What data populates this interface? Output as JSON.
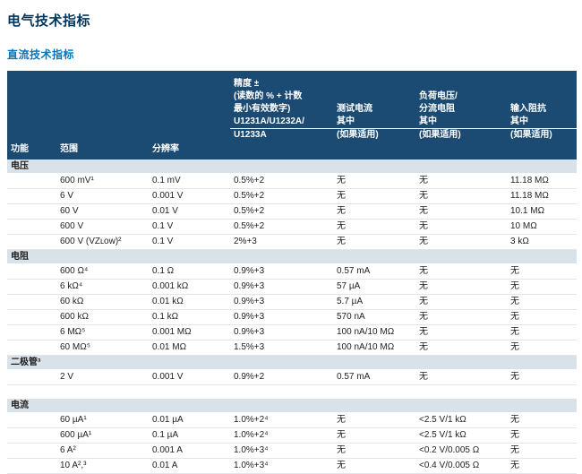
{
  "page": {
    "title": "电气技术指标",
    "subtitle": "直流技术指标"
  },
  "colors": {
    "title_text": "#00365e",
    "subtitle_text": "#0076c0",
    "header_bg": "#1b4a72",
    "header_text": "#ffffff",
    "section_band_bg": "#d9e1e9",
    "body_text": "#222222"
  },
  "table": {
    "headers": {
      "function": "功能",
      "range": "范围",
      "resolution": "分辨率",
      "accuracy_lines": [
        "精度 ±",
        "(读数的 % + 计数",
        "最小有效数字)",
        "U1231A/U1232A/",
        "U1233A"
      ],
      "test_current_lines": [
        "测试电流",
        "其中",
        "(如果适用)"
      ],
      "burden_lines": [
        "负荷电压/",
        "分流电阻",
        "其中",
        "(如果适用)"
      ],
      "impedance_lines": [
        "输入阻抗",
        "其中",
        "(如果适用)"
      ]
    },
    "none_label": "无",
    "sections": [
      {
        "name": "电压",
        "rows": [
          [
            "600 mV¹",
            "0.1 mV",
            "0.5%+2",
            "无",
            "无",
            "11.18 MΩ"
          ],
          [
            "6 V",
            "0.001 V",
            "0.5%+2",
            "无",
            "无",
            "11.18 MΩ"
          ],
          [
            "60 V",
            "0.01 V",
            "0.5%+2",
            "无",
            "无",
            "10.1 MΩ"
          ],
          [
            "600 V",
            "0.1 V",
            "0.5%+2",
            "无",
            "无",
            "10 MΩ"
          ],
          [
            "600 V (VZʟᴏᴡ)²",
            "0.1 V",
            "2%+3",
            "无",
            "无",
            "3 kΩ"
          ]
        ]
      },
      {
        "name": "电阻",
        "rows": [
          [
            "600 Ω⁴",
            "0.1 Ω",
            "0.9%+3",
            "0.57 mA",
            "无",
            "无"
          ],
          [
            "6 kΩ⁴",
            "0.001 kΩ",
            "0.9%+3",
            "57 µA",
            "无",
            "无"
          ],
          [
            "60 kΩ",
            "0.01 kΩ",
            "0.9%+3",
            "5.7 µA",
            "无",
            "无"
          ],
          [
            "600 kΩ",
            "0.1 kΩ",
            "0.9%+3",
            "570 nA",
            "无",
            "无"
          ],
          [
            "6 MΩ⁵",
            "0.001 MΩ",
            "0.9%+3",
            "100 nA/10 MΩ",
            "无",
            "无"
          ],
          [
            "60 MΩ⁵",
            "0.01 MΩ",
            "1.5%+3",
            "100 nA/10 MΩ",
            "无",
            "无"
          ]
        ]
      },
      {
        "name": "二极管³",
        "gap_after": true,
        "rows": [
          [
            "2 V",
            "0.001 V",
            "0.9%+2",
            "0.57 mA",
            "无",
            "无"
          ]
        ]
      },
      {
        "name": "电流",
        "rows": [
          [
            "60 µA¹",
            "0.01 µA",
            "1.0%+2⁴",
            "无",
            "<2.5 V/1 kΩ",
            "无"
          ],
          [
            "600 µA¹",
            "0.1 µA",
            "1.0%+2⁴",
            "无",
            "<2.5 V/1 kΩ",
            "无"
          ],
          [
            "6 A²",
            "0.001 A",
            "1.0%+3⁴",
            "无",
            "<0.2 V/0.005 Ω",
            "无"
          ],
          [
            "10 A²,³",
            "0.01 A",
            "1.0%+3⁴",
            "无",
            "<0.4 V/0.005 Ω",
            "无"
          ]
        ]
      }
    ]
  }
}
